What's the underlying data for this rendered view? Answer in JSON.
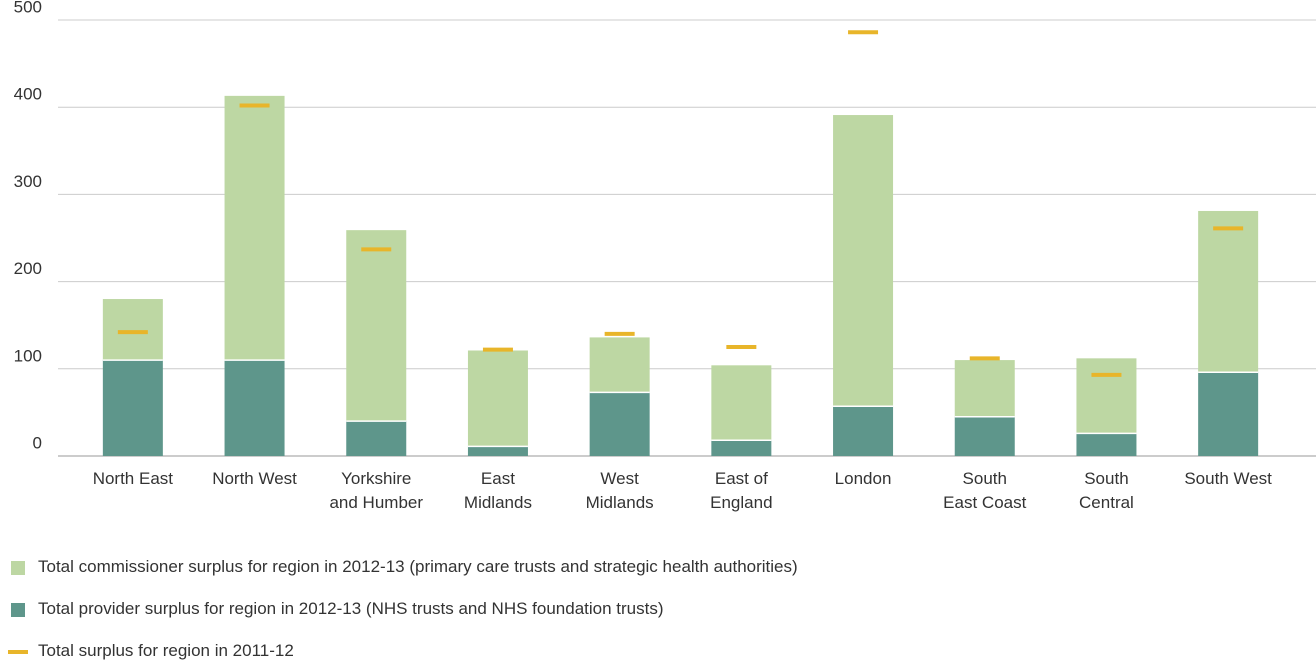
{
  "chart_data": {
    "type": "bar",
    "categories": [
      "North East",
      "North West",
      "Yorkshire\nand Humber",
      "East\nMidlands",
      "West\nMidlands",
      "East of\nEngland",
      "London",
      "South\nEast Coast",
      "South\nCentral",
      "South West"
    ],
    "series": [
      {
        "name": "Total commissioner surplus for region in 2012-13 (primary care trusts and strategic health authorities)",
        "color": "#bdd7a3",
        "mark": "stacked-bar",
        "values": [
          70,
          303,
          219,
          110,
          63,
          86,
          334,
          65,
          86,
          185
        ]
      },
      {
        "name": "Total provider surplus for region in 2012-13 (NHS trusts and NHS foundation trusts)",
        "color": "#5e968b",
        "mark": "base-bar",
        "values": [
          110,
          110,
          40,
          11,
          73,
          18,
          57,
          45,
          26,
          96
        ]
      },
      {
        "name": "Total surplus for region in 2011-12",
        "color": "#e8b52a",
        "mark": "dash",
        "values": [
          142,
          402,
          237,
          122,
          140,
          125,
          486,
          112,
          93,
          261
        ]
      }
    ],
    "ylim": [
      0,
      500
    ],
    "yticks": [
      0,
      100,
      200,
      300,
      400,
      500
    ],
    "grid": true
  }
}
